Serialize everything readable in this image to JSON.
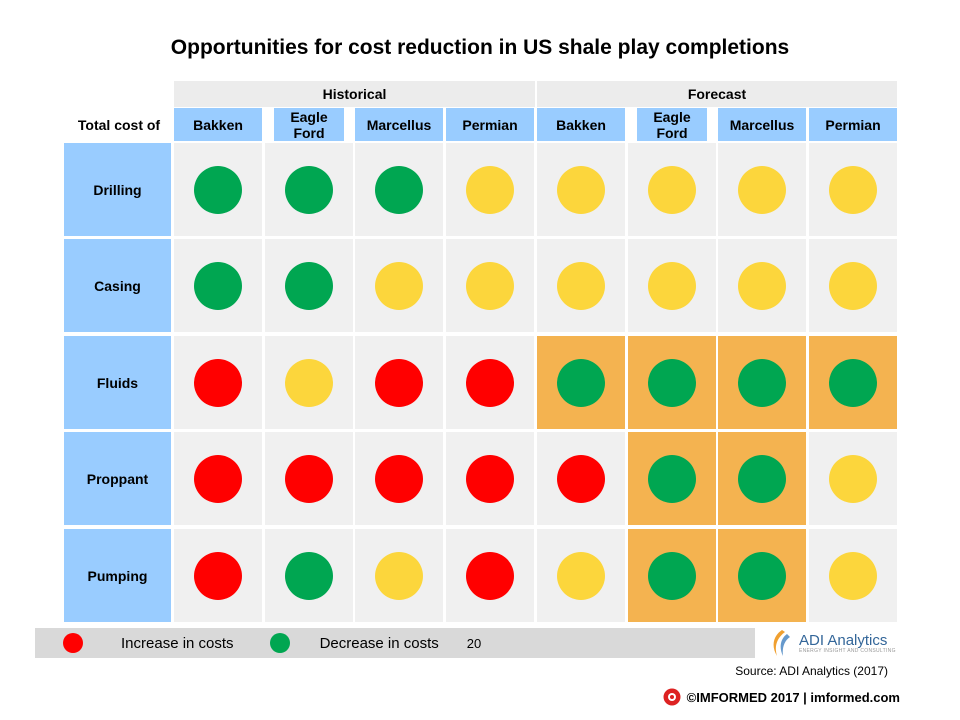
{
  "colors": {
    "increase": "#ff0000",
    "decrease": "#00a651",
    "neutral": "#fcd63c",
    "cell_bg": "#f0f0f0",
    "highlight_bg": "#f4b350",
    "header_bg": "#99ccff"
  },
  "chart_data": {
    "type": "table",
    "title": "Opportunities for cost reduction in US shale play completions",
    "corner_label": "Total cost of",
    "groups": [
      {
        "label": "Historical",
        "columns": [
          "Bakken",
          "Eagle Ford",
          "Marcellus",
          "Permian"
        ]
      },
      {
        "label": "Forecast",
        "columns": [
          "Bakken",
          "Eagle Ford",
          "Marcellus",
          "Permian"
        ]
      }
    ],
    "rows": [
      {
        "label": "Drilling",
        "values": [
          "decrease",
          "decrease",
          "decrease",
          "neutral",
          "neutral",
          "neutral",
          "neutral",
          "neutral"
        ],
        "highlight": [
          false,
          false,
          false,
          false,
          false,
          false,
          false,
          false
        ]
      },
      {
        "label": "Casing",
        "values": [
          "decrease",
          "decrease",
          "neutral",
          "neutral",
          "neutral",
          "neutral",
          "neutral",
          "neutral"
        ],
        "highlight": [
          false,
          false,
          false,
          false,
          false,
          false,
          false,
          false
        ]
      },
      {
        "label": "Fluids",
        "values": [
          "increase",
          "neutral",
          "increase",
          "increase",
          "decrease",
          "decrease",
          "decrease",
          "decrease"
        ],
        "highlight": [
          false,
          false,
          false,
          false,
          true,
          true,
          true,
          true
        ]
      },
      {
        "label": "Proppant",
        "values": [
          "increase",
          "increase",
          "increase",
          "increase",
          "increase",
          "decrease",
          "decrease",
          "neutral"
        ],
        "highlight": [
          false,
          false,
          false,
          false,
          false,
          true,
          true,
          false
        ]
      },
      {
        "label": "Pumping",
        "values": [
          "increase",
          "decrease",
          "neutral",
          "increase",
          "neutral",
          "decrease",
          "decrease",
          "neutral"
        ],
        "highlight": [
          false,
          false,
          false,
          false,
          false,
          true,
          true,
          false
        ]
      }
    ],
    "legend": [
      {
        "key": "increase",
        "label": "Increase in costs"
      },
      {
        "key": "decrease",
        "label": "Decrease in costs"
      }
    ]
  },
  "page_number": "20",
  "logo": {
    "name": "ADI Analytics",
    "tagline": "ENERGY INSIGHT AND CONSULTING"
  },
  "source": "Source: ADI Analytics (2017)",
  "footer": "©IMFORMED 2017  | imformed.com"
}
